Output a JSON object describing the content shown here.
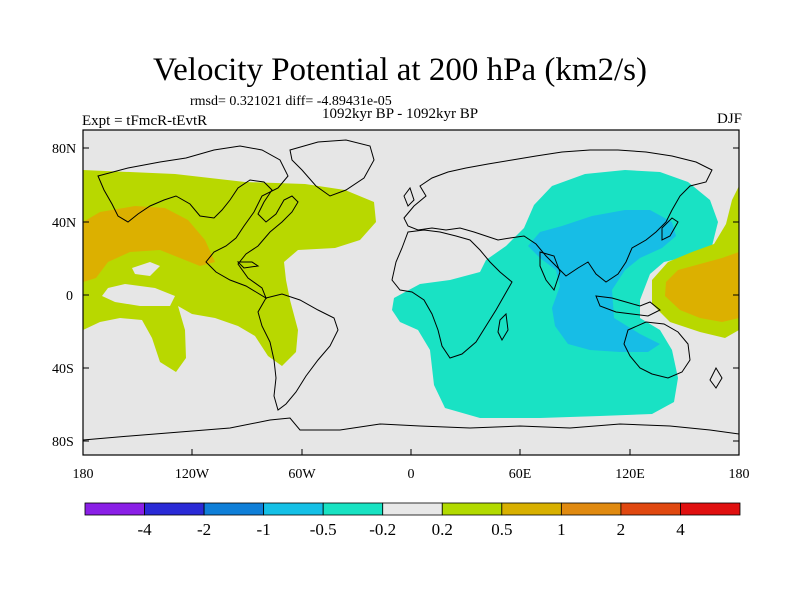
{
  "figure": {
    "title": "Velocity Potential at 200 hPa (km2/s)",
    "stats": "rmsd= 0.321021 diff= -4.89431e-05",
    "subtitle": "1092kyr BP - 1092kyr BP",
    "experiment": "Expt = tFmcR-tEvtR",
    "season": "DJF"
  },
  "axes": {
    "lat_labels": [
      "80N",
      "40N",
      "0",
      "40S",
      "80S"
    ],
    "lon_labels": [
      "180",
      "120W",
      "60W",
      "0",
      "60E",
      "120E",
      "180"
    ]
  },
  "colorbar": {
    "labels": [
      "-4",
      "-2",
      "-1",
      "-0.5",
      "-0.2",
      "0.2",
      "0.5",
      "1",
      "2",
      "4"
    ],
    "colors": [
      "#8a1fe6",
      "#2a2ad6",
      "#0f7fd8",
      "#15c0e6",
      "#18e2c2",
      "#e8e8e8",
      "#b2da00",
      "#d8b000",
      "#e08a10",
      "#e04810",
      "#e01010"
    ]
  },
  "map_colors": {
    "background": "#e6e6e6",
    "positive_weak": "#b8d800",
    "positive_mid": "#dcb000",
    "negative_weak": "#19e2c4",
    "negative_mid": "#17bde6"
  }
}
